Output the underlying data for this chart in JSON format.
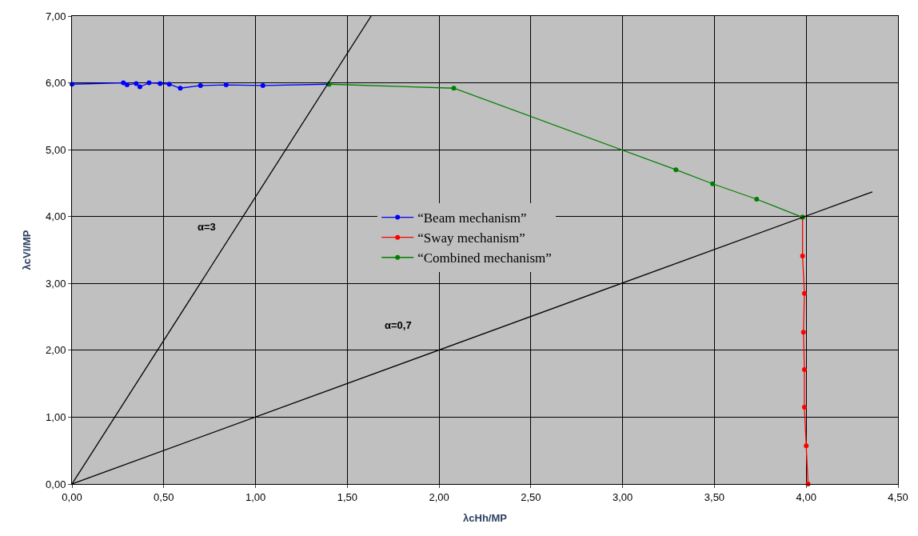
{
  "chart_data": {
    "type": "line",
    "xlabel": "λcHh/MP",
    "ylabel": "λcVl/MP",
    "xlim": [
      0,
      4.5
    ],
    "ylim": [
      0,
      7
    ],
    "xticks": [
      {
        "value": 0,
        "label": "0,00"
      },
      {
        "value": 0.5,
        "label": "0,50"
      },
      {
        "value": 1,
        "label": "1,00"
      },
      {
        "value": 1.5,
        "label": "1,50"
      },
      {
        "value": 2,
        "label": "2,00"
      },
      {
        "value": 2.5,
        "label": "2,50"
      },
      {
        "value": 3,
        "label": "3,00"
      },
      {
        "value": 3.5,
        "label": "3,50"
      },
      {
        "value": 4,
        "label": "4,00"
      },
      {
        "value": 4.5,
        "label": "4,50"
      }
    ],
    "yticks": [
      {
        "value": 0,
        "label": "0,00"
      },
      {
        "value": 1,
        "label": "1,00"
      },
      {
        "value": 2,
        "label": "2,00"
      },
      {
        "value": 3,
        "label": "3,00"
      },
      {
        "value": 4,
        "label": "4,00"
      },
      {
        "value": 5,
        "label": "5,00"
      },
      {
        "value": 6,
        "label": "6,00"
      },
      {
        "value": 7,
        "label": "7,00"
      }
    ],
    "grid": true,
    "legend": "center",
    "marker": "circle",
    "line_style": "solid",
    "series": [
      {
        "name": "“Beam mechanism”",
        "color": "#0000ff",
        "x": [
          0,
          0.28,
          0.3,
          0.35,
          0.37,
          0.42,
          0.48,
          0.53,
          0.59,
          0.7,
          0.84,
          1.04,
          1.4
        ],
        "values": [
          5.98,
          6.0,
          5.97,
          5.99,
          5.94,
          6.0,
          5.99,
          5.98,
          5.92,
          5.96,
          5.97,
          5.96,
          5.98
        ]
      },
      {
        "name": "“Sway mechanism”",
        "color": "#ff0000",
        "x": [
          3.98,
          3.98,
          3.99,
          3.985,
          3.99,
          3.99,
          4.0,
          4.01
        ],
        "values": [
          3.99,
          3.41,
          2.85,
          2.27,
          1.71,
          1.15,
          0.57,
          0
        ]
      },
      {
        "name": "“Combined mechanism”",
        "color": "#008000",
        "x": [
          1.4,
          2.08,
          3.29,
          3.49,
          3.73,
          3.98
        ],
        "values": [
          5.98,
          5.92,
          4.7,
          4.49,
          4.26,
          3.99
        ]
      },
      {
        "marker": "none",
        "color": "#000000",
        "x": [
          0,
          1.63
        ],
        "values": [
          0,
          7.0
        ]
      },
      {
        "marker": "none",
        "color": "#000000",
        "x": [
          0,
          4.36
        ],
        "values": [
          0,
          4.37
        ]
      }
    ],
    "annotations": [
      "α=3",
      "α=0,7"
    ]
  }
}
